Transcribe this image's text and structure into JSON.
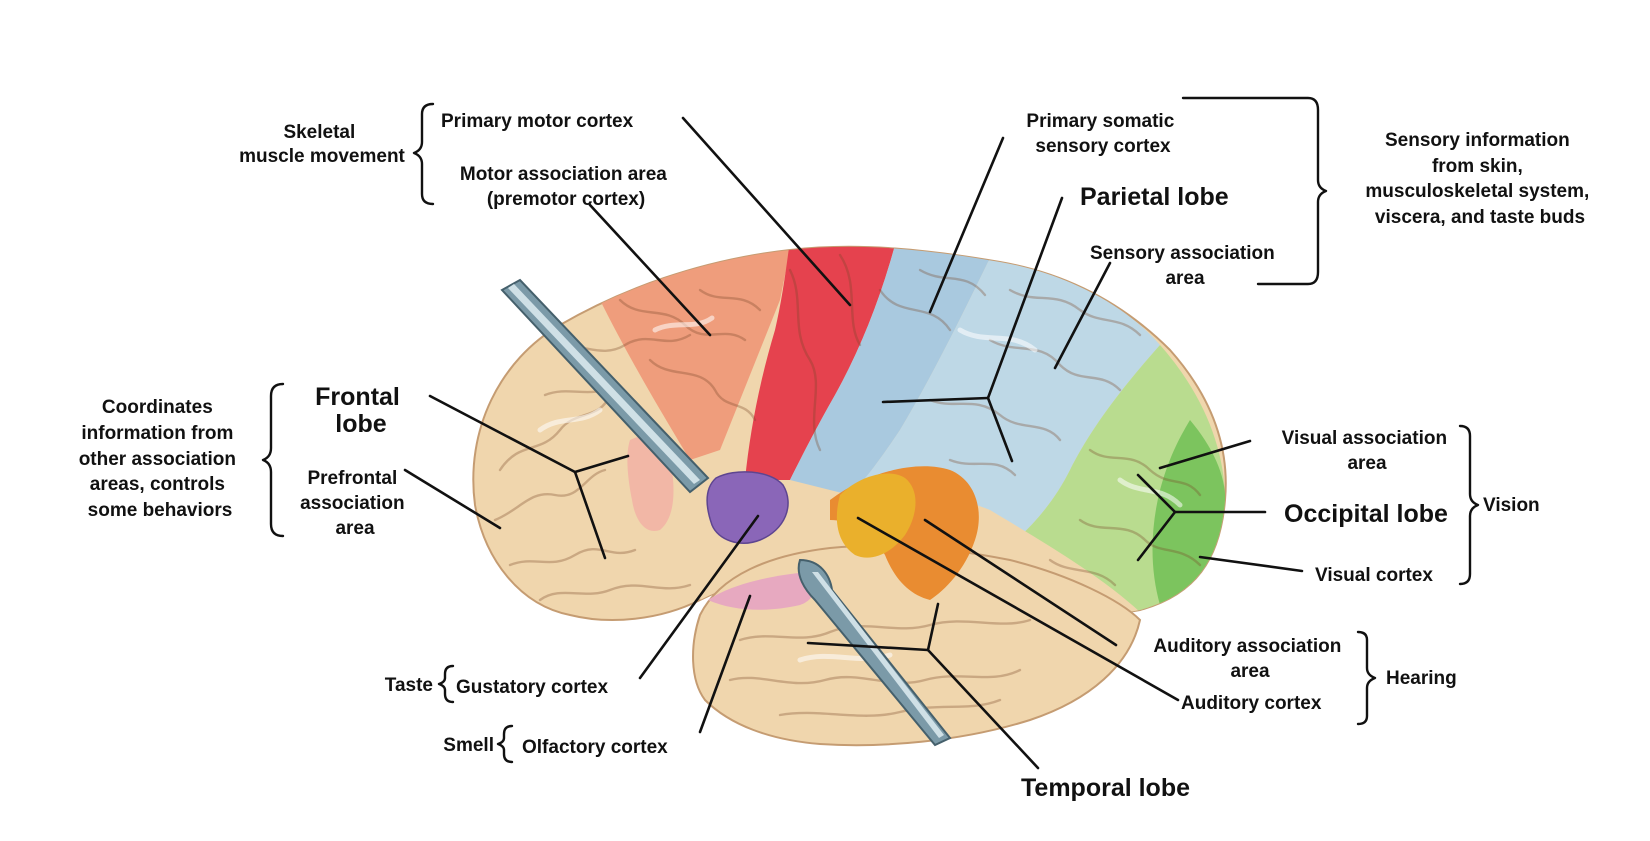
{
  "colors": {
    "frontal": "#f0d6ad",
    "prefrontal_highlight": "#f2b7a6",
    "motor_association": "#ef9d7c",
    "primary_motor": "#e5424e",
    "somatic_sensory": "#a9c9df",
    "sensory_association": "#bed8e6",
    "visual_association": "#b9dc8f",
    "visual_cortex": "#7cc45e",
    "auditory_cortex": "#eab02c",
    "auditory_association": "#e98c31",
    "gustatory": "#8a66b8",
    "olfactory": "#e7a9c0",
    "temporal": "#f0d6ad",
    "instrument": "#7b9aa8"
  },
  "labels": {
    "skeletal": [
      "Skeletal",
      "muscle movement"
    ],
    "primary_motor": "Primary motor cortex",
    "motor_assoc": [
      "Motor association area",
      "(premotor cortex)"
    ],
    "coordinates": [
      "Coordinates",
      "information from",
      "other association",
      "areas, controls",
      "some behaviors"
    ],
    "frontal_lobe": [
      "Frontal",
      "lobe"
    ],
    "prefrontal": [
      "Prefrontal",
      "association",
      "area"
    ],
    "taste": "Taste",
    "gustatory": "Gustatory cortex",
    "smell": "Smell",
    "olfactory": "Olfactory cortex",
    "primary_somatic": [
      "Primary somatic",
      "sensory cortex"
    ],
    "parietal_lobe": "Parietal lobe",
    "sensory_assoc": [
      "Sensory association",
      "area"
    ],
    "sensory_info": [
      "Sensory information",
      "from skin,",
      "musculoskeletal system,",
      "viscera, and taste buds"
    ],
    "visual_assoc": [
      "Visual association",
      "area"
    ],
    "occipital_lobe": "Occipital lobe",
    "vision": "Vision",
    "visual_cortex": "Visual cortex",
    "auditory_assoc": [
      "Auditory association",
      "area"
    ],
    "auditory_cortex": "Auditory cortex",
    "hearing": "Hearing",
    "temporal_lobe": "Temporal lobe"
  }
}
